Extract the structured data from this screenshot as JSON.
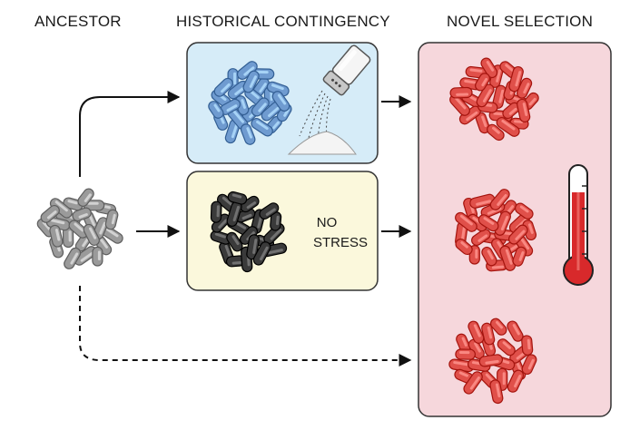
{
  "headers": {
    "ancestor": "ANCESTOR",
    "historical": "HISTORICAL CONTINGENCY",
    "novel": "NOVEL SELECTION"
  },
  "no_stress": {
    "line1": "NO",
    "line2": "STRESS"
  },
  "colors": {
    "ancestor_cell": "#9a9a9a",
    "salt_cell": "#6f9bd0",
    "nostress_cell": "#3a3a3a",
    "novel_cell": "#e0504a",
    "salt_box_bg": "#d6ecf8",
    "nostress_box_bg": "#fbf8dc",
    "novel_panel_bg": "#f6d7dc",
    "thermometer_fill": "#d8292b"
  },
  "icons": [
    "salt-shaker-icon",
    "thermometer-icon"
  ]
}
